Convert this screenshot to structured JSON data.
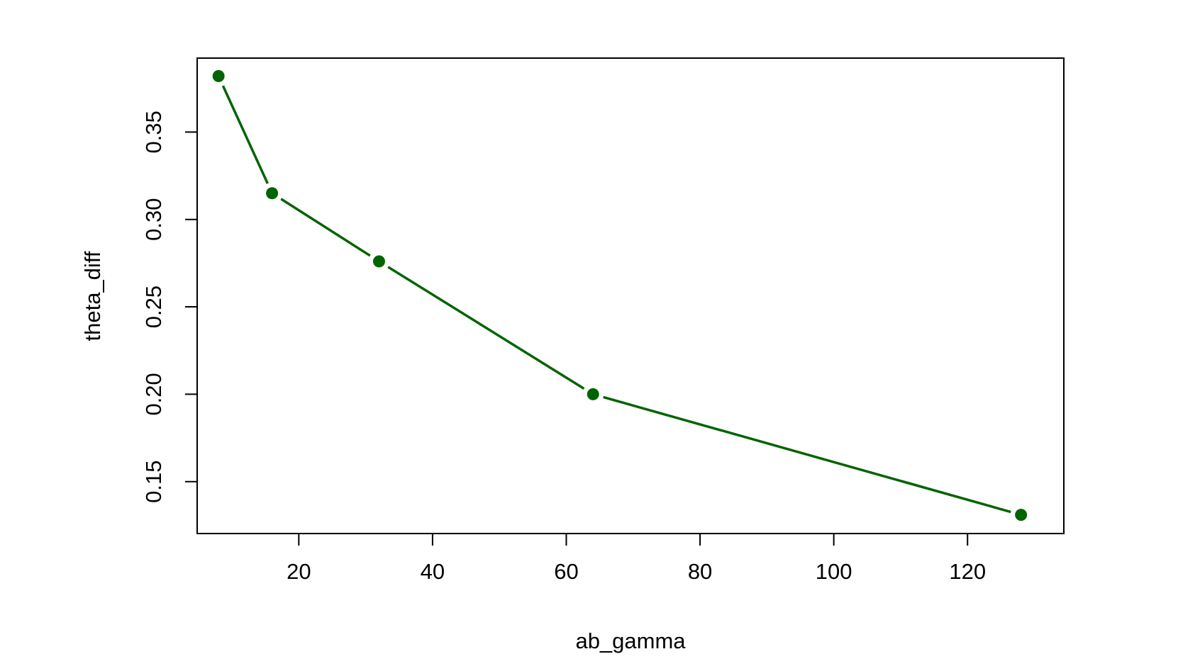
{
  "chart_data": {
    "type": "line",
    "title": "",
    "xlabel": "ab_gamma",
    "ylabel": "theta_diff",
    "xlim": [
      4.8,
      134.4
    ],
    "ylim": [
      0.1203,
      0.3923
    ],
    "x_ticks": [
      20,
      40,
      60,
      80,
      100,
      120
    ],
    "y_ticks": [
      0.15,
      0.2,
      0.25,
      0.3,
      0.35
    ],
    "x_tick_labels": [
      "20",
      "40",
      "60",
      "80",
      "100",
      "120"
    ],
    "y_tick_labels": [
      "0.15",
      "0.20",
      "0.25",
      "0.30",
      "0.35"
    ],
    "grid": false,
    "legend": "none",
    "series": [
      {
        "x": [
          8,
          16,
          32,
          64,
          128
        ],
        "y": [
          0.382,
          0.315,
          0.276,
          0.2,
          0.131
        ],
        "color": "#006400",
        "marker": "filled-circle",
        "line_style": "solid-with-gaps"
      }
    ]
  }
}
